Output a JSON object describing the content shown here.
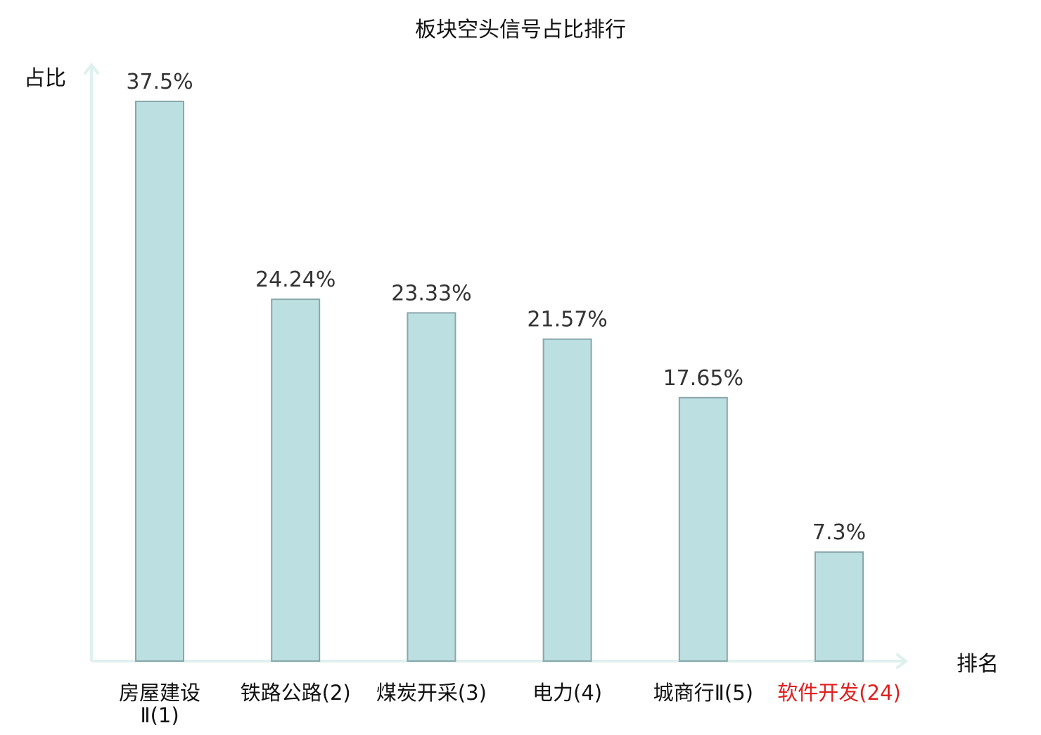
{
  "chart_data": {
    "type": "bar",
    "title": "板块空头信号占比排行",
    "ylabel": "占比",
    "xlabel": "排名",
    "categories": [
      [
        "房屋建设",
        "Ⅱ(1)"
      ],
      [
        "铁路公路(2)"
      ],
      [
        "煤炭开采(3)"
      ],
      [
        "电力(4)"
      ],
      [
        "城商行Ⅱ(5)"
      ],
      [
        "软件开发(24)"
      ]
    ],
    "values": [
      37.5,
      24.24,
      23.33,
      21.57,
      17.65,
      7.3
    ],
    "value_labels": [
      "37.5%",
      "24.24%",
      "23.33%",
      "21.57%",
      "17.65%",
      "7.3%"
    ],
    "highlight_index": 5,
    "ylim": [
      0,
      40
    ],
    "grid": false,
    "colors": {
      "bar_fill": "#bcdfe1",
      "bar_stroke": "#8aa7aa",
      "axis": "#dff1ee",
      "label": "#222222",
      "value_label": "#333333",
      "highlight": "#e02020"
    }
  }
}
